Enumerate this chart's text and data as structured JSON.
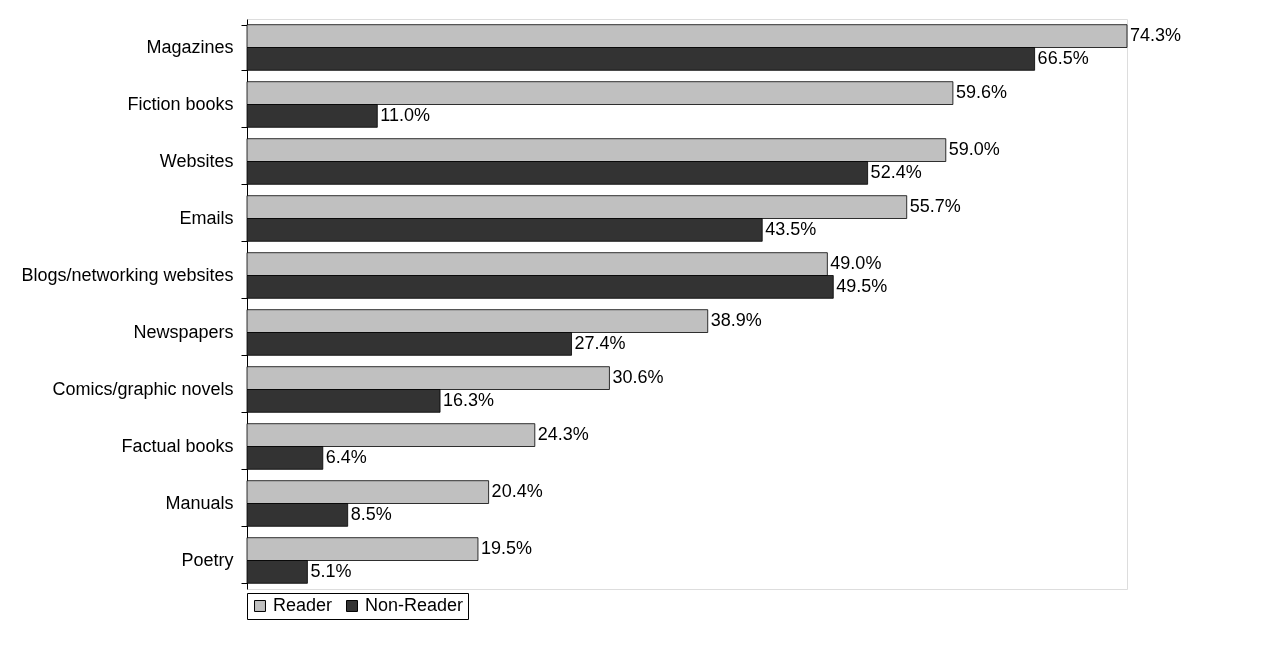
{
  "chart_data": {
    "type": "bar",
    "orientation": "horizontal",
    "data_labels": true,
    "legend": "bottom",
    "grid": false,
    "categories": [
      "Magazines",
      "Fiction books",
      "Websites",
      "Emails",
      "Blogs/networking websites",
      "Newspapers",
      "Comics/graphic novels",
      "Factual books",
      "Manuals",
      "Poetry"
    ],
    "series": [
      {
        "name": "Reader",
        "color": "#c0c0c0",
        "values": [
          74.3,
          59.6,
          59.0,
          55.7,
          49.0,
          38.9,
          30.6,
          24.3,
          20.4,
          19.5
        ],
        "value_labels": [
          "74.3%",
          "59.6%",
          "59.0%",
          "55.7%",
          "49.0%",
          "38.9%",
          "30.6%",
          "24.3%",
          "20.4%",
          "19.5%"
        ]
      },
      {
        "name": "Non-Reader",
        "color": "#333333",
        "values": [
          66.5,
          11.0,
          52.4,
          43.5,
          49.5,
          27.4,
          16.3,
          6.4,
          8.5,
          5.1
        ],
        "value_labels": [
          "66.5%",
          "11.0%",
          "52.4%",
          "43.5%",
          "49.5%",
          "27.4%",
          "16.3%",
          "6.4%",
          "8.5%",
          "5.1%"
        ]
      }
    ]
  }
}
